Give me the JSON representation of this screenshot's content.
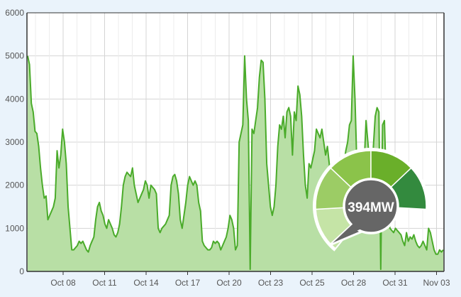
{
  "chart_data": {
    "type": "area",
    "x_tick_labels": [
      "Oct 08",
      "Oct 11",
      "Oct 14",
      "Oct 17",
      "Oct 20",
      "Oct 23",
      "Oct 25",
      "Oct 28",
      "Oct 31",
      "Nov 03"
    ],
    "y_tick_labels": [
      "0",
      "1000",
      "2000",
      "3000",
      "4000",
      "5000",
      "6000"
    ],
    "ylim": [
      0,
      6000
    ],
    "grid": true,
    "legend": "none",
    "colors": {
      "line": "#4aab2a",
      "fill": "#b8dfa5",
      "background": "#ffffff",
      "grid": "#d4d4d4"
    },
    "series": [
      {
        "values": [
          5000,
          4800,
          3900,
          3700,
          3250,
          3200,
          2900,
          2400,
          2000,
          1700,
          1750,
          1200,
          1300,
          1400,
          1500,
          1700,
          2800,
          2400,
          2700,
          3300,
          3000,
          2500,
          1500,
          1000,
          500,
          500,
          550,
          600,
          700,
          650,
          700,
          600,
          500,
          450,
          600,
          700,
          800,
          1200,
          1500,
          1600,
          1400,
          1300,
          1100,
          1000,
          1200,
          1100,
          1000,
          850,
          800,
          900,
          1100,
          1500,
          2000,
          2200,
          2300,
          2250,
          2200,
          2400,
          2000,
          1800,
          1600,
          1700,
          1800,
          1900,
          2100,
          2000,
          1700,
          2000,
          1950,
          1900,
          1800,
          1000,
          900,
          1000,
          1050,
          1100,
          1200,
          1300,
          2000,
          2200,
          2250,
          2100,
          1800,
          1200,
          1000,
          1300,
          1600,
          2000,
          2200,
          2100,
          2000,
          2100,
          2000,
          1600,
          1400,
          700,
          600,
          550,
          500,
          500,
          550,
          700,
          650,
          700,
          650,
          500,
          600,
          700,
          800,
          1000,
          1300,
          1200,
          1000,
          500,
          600,
          3000,
          3200,
          3400,
          5000,
          4000,
          3500,
          50,
          3300,
          3200,
          3500,
          3800,
          4500,
          4900,
          4850,
          4000,
          2500,
          2000,
          1500,
          1300,
          1500,
          2000,
          2900,
          3400,
          3300,
          3600,
          3100,
          3700,
          3800,
          3600,
          2700,
          3700,
          3500,
          4300,
          4100,
          3600,
          2700,
          2000,
          1700,
          2500,
          2400,
          2600,
          2800,
          3300,
          3200,
          3100,
          3300,
          3000,
          2700,
          2900,
          2500,
          2000,
          1800,
          1700,
          1300,
          1400,
          1800,
          2200,
          2500,
          2800,
          3000,
          3400,
          3500,
          5000,
          4000,
          2500,
          2000,
          1200,
          1500,
          2500,
          3500,
          3000,
          2500,
          1000,
          2900,
          3600,
          3800,
          3700,
          50,
          3400,
          3500,
          2000,
          1400,
          1000,
          950,
          900,
          1000,
          950,
          900,
          850,
          700,
          600,
          900,
          700,
          800,
          750,
          850,
          700,
          600,
          550,
          600,
          700,
          600,
          500,
          1000,
          900,
          700,
          500,
          400,
          400,
          500,
          450,
          500
        ]
      }
    ]
  },
  "gauge": {
    "value_label": "394MW",
    "segment_colors": [
      "#c5e4a6",
      "#9ccc65",
      "#8bc34a",
      "#6aaf2a",
      "#338a3e",
      "#006d2c"
    ],
    "active_segments": 5,
    "badge_color": "#666666",
    "text_color": "#ffffff"
  }
}
